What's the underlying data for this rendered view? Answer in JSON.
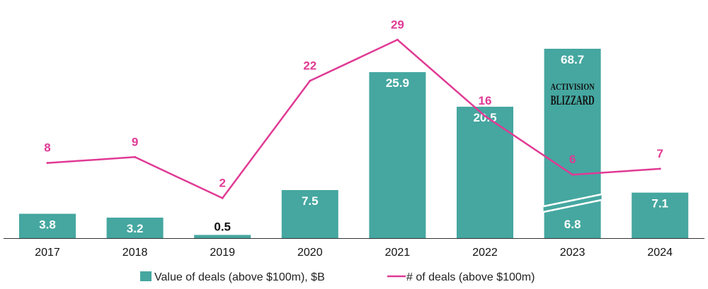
{
  "chart_data": {
    "type": "bar",
    "categories": [
      "2017",
      "2018",
      "2019",
      "2020",
      "2021",
      "2022",
      "2023",
      "2024"
    ],
    "series": [
      {
        "name": "Value of deals (above $100m), $B",
        "kind": "bar",
        "values": [
          3.8,
          3.2,
          0.5,
          7.5,
          25.9,
          20.5,
          68.7,
          7.1
        ],
        "labels": [
          "3.8",
          "3.2",
          "0.5",
          "7.5",
          "25.9",
          "20.5",
          "68.7",
          "7.1"
        ]
      },
      {
        "name": "# of deals (above $100m)",
        "kind": "line",
        "values": [
          8,
          9,
          2,
          22,
          29,
          16,
          6,
          7
        ],
        "labels": [
          "8",
          "9",
          "2",
          "22",
          "29",
          "16",
          "6",
          "7"
        ]
      }
    ],
    "broken_bar": {
      "category": "2023",
      "total": 68.7,
      "base_value": 6.8,
      "base_label": "6.8",
      "annotation_logo_line1": "ACTIVISION",
      "annotation_logo_line2": "BLIZZARD"
    },
    "title": "",
    "xlabel": "",
    "ylabel": "",
    "legend_position": "bottom",
    "grid": false,
    "colors": {
      "bar": "#45a7a0",
      "line": "#e03a95",
      "axis": "#333333"
    }
  }
}
